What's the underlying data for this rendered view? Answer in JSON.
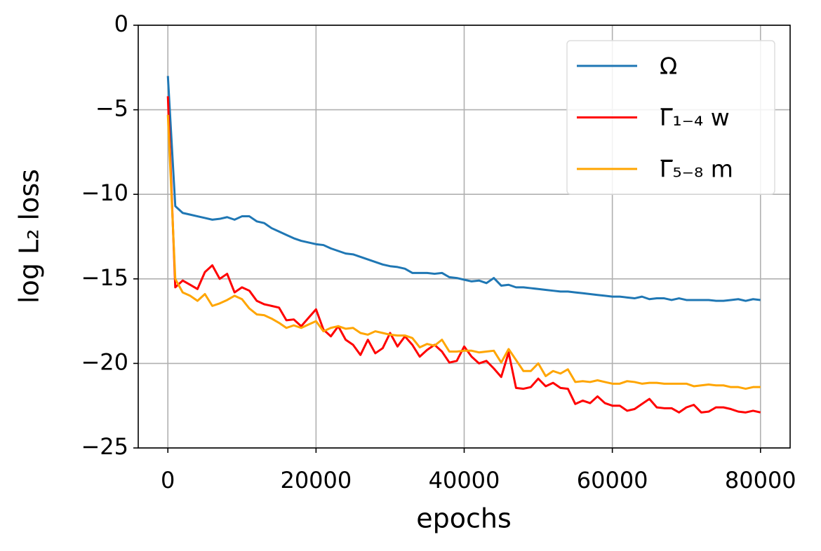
{
  "chart_data": {
    "type": "line",
    "xlabel": "epochs",
    "ylabel": "log L₂ loss",
    "x": [
      0,
      1000,
      2000,
      3000,
      4000,
      5000,
      6000,
      7000,
      8000,
      9000,
      10000,
      11000,
      12000,
      13000,
      14000,
      15000,
      16000,
      17000,
      18000,
      19000,
      20000,
      21000,
      22000,
      23000,
      24000,
      25000,
      26000,
      27000,
      28000,
      29000,
      30000,
      31000,
      32000,
      33000,
      34000,
      35000,
      36000,
      37000,
      38000,
      39000,
      40000,
      41000,
      42000,
      43000,
      44000,
      45000,
      46000,
      47000,
      48000,
      49000,
      50000,
      51000,
      52000,
      53000,
      54000,
      55000,
      56000,
      57000,
      58000,
      59000,
      60000,
      61000,
      62000,
      63000,
      64000,
      65000,
      66000,
      67000,
      68000,
      69000,
      70000,
      71000,
      72000,
      73000,
      74000,
      75000,
      76000,
      77000,
      78000,
      79000,
      80000
    ],
    "series": [
      {
        "name": "Ω",
        "color": "#1f77b4",
        "values": [
          -3.0,
          -10.7,
          -11.1,
          -11.2,
          -11.3,
          -11.4,
          -11.5,
          -11.45,
          -11.35,
          -11.5,
          -11.3,
          -11.3,
          -11.6,
          -11.7,
          -12.0,
          -12.2,
          -12.4,
          -12.6,
          -12.75,
          -12.85,
          -12.95,
          -13.0,
          -13.2,
          -13.35,
          -13.5,
          -13.55,
          -13.7,
          -13.85,
          -14.0,
          -14.15,
          -14.25,
          -14.3,
          -14.4,
          -14.65,
          -14.65,
          -14.65,
          -14.7,
          -14.65,
          -14.9,
          -14.95,
          -15.05,
          -15.15,
          -15.1,
          -15.25,
          -14.95,
          -15.4,
          -15.35,
          -15.5,
          -15.5,
          -15.55,
          -15.6,
          -15.65,
          -15.7,
          -15.75,
          -15.75,
          -15.8,
          -15.85,
          -15.9,
          -15.95,
          -16.0,
          -16.05,
          -16.05,
          -16.1,
          -16.15,
          -16.05,
          -16.2,
          -16.15,
          -16.15,
          -16.25,
          -16.15,
          -16.25,
          -16.25,
          -16.25,
          -16.25,
          -16.3,
          -16.3,
          -16.25,
          -16.2,
          -16.3,
          -16.2,
          -16.25
        ]
      },
      {
        "name": "Γ̅₁₋₄ w",
        "color": "#ff0000",
        "values": [
          -4.2,
          -15.5,
          -15.1,
          -15.35,
          -15.6,
          -14.6,
          -14.2,
          -15.0,
          -14.7,
          -15.8,
          -15.5,
          -15.7,
          -16.3,
          -16.5,
          -16.6,
          -16.7,
          -17.45,
          -17.4,
          -17.8,
          -17.3,
          -16.8,
          -18.0,
          -18.4,
          -17.8,
          -18.6,
          -18.9,
          -19.5,
          -18.6,
          -19.4,
          -19.1,
          -18.2,
          -19.0,
          -18.4,
          -18.9,
          -19.6,
          -19.2,
          -18.9,
          -19.3,
          -19.95,
          -19.85,
          -19.0,
          -19.6,
          -20.0,
          -19.85,
          -20.3,
          -20.8,
          -19.35,
          -21.45,
          -21.5,
          -21.4,
          -20.9,
          -21.35,
          -21.15,
          -21.45,
          -21.5,
          -22.4,
          -22.2,
          -22.35,
          -21.95,
          -22.35,
          -22.5,
          -22.5,
          -22.8,
          -22.7,
          -22.4,
          -22.1,
          -22.6,
          -22.65,
          -22.65,
          -22.9,
          -22.6,
          -22.45,
          -22.9,
          -22.85,
          -22.6,
          -22.6,
          -22.7,
          -22.85,
          -22.9,
          -22.8,
          -22.9
        ]
      },
      {
        "name": "Γ̅₅₋₈ m",
        "color": "#ffa500",
        "values": [
          -5.3,
          -15.0,
          -15.8,
          -16.0,
          -16.3,
          -15.9,
          -16.6,
          -16.45,
          -16.25,
          -16.0,
          -16.2,
          -16.75,
          -17.1,
          -17.15,
          -17.35,
          -17.6,
          -17.9,
          -17.75,
          -17.9,
          -17.7,
          -17.5,
          -18.1,
          -17.9,
          -17.8,
          -17.95,
          -17.9,
          -18.2,
          -18.3,
          -18.1,
          -18.2,
          -18.3,
          -18.35,
          -18.35,
          -18.5,
          -19.05,
          -18.85,
          -18.95,
          -18.6,
          -19.3,
          -19.3,
          -19.25,
          -19.25,
          -19.35,
          -19.3,
          -19.25,
          -19.95,
          -19.15,
          -19.8,
          -20.45,
          -20.45,
          -20.0,
          -20.75,
          -20.45,
          -20.6,
          -20.35,
          -21.1,
          -21.05,
          -21.1,
          -21.0,
          -21.1,
          -21.2,
          -21.2,
          -21.05,
          -21.1,
          -21.2,
          -21.15,
          -21.15,
          -21.2,
          -21.2,
          -21.2,
          -21.2,
          -21.35,
          -21.3,
          -21.25,
          -21.3,
          -21.3,
          -21.4,
          -21.4,
          -21.5,
          -21.4,
          -21.4
        ]
      }
    ],
    "xlim": [
      -4000,
      84000
    ],
    "ylim": [
      -25,
      0
    ],
    "xticks": [
      0,
      20000,
      40000,
      60000,
      80000
    ],
    "yticks": [
      {
        "value": -25,
        "label": "−25"
      },
      {
        "value": -20,
        "label": "−20"
      },
      {
        "value": -15,
        "label": "−15"
      },
      {
        "value": -10,
        "label": "−10"
      },
      {
        "value": -5,
        "label": "−5"
      },
      0
    ],
    "grid": true,
    "legend": "upper right"
  }
}
